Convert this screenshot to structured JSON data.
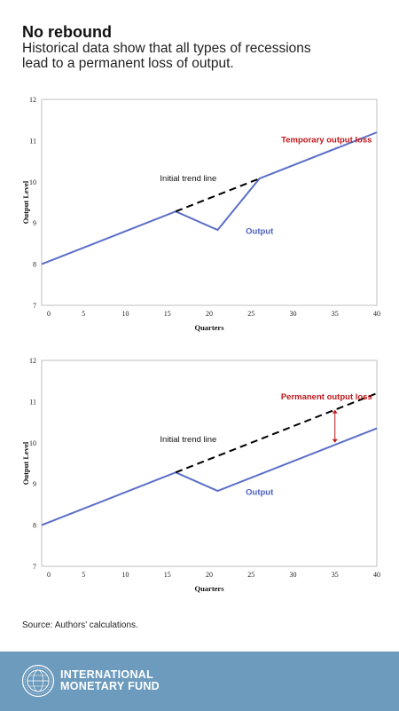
{
  "header": {
    "title": "No rebound",
    "subtitle_line1": "Historical data show that all types of recessions",
    "subtitle_line2": "lead to a permanent loss of output."
  },
  "chart_data": [
    {
      "type": "line",
      "xlabel": "Quarters",
      "ylabel": "Output Level",
      "xlim": [
        0,
        40
      ],
      "ylim": [
        7,
        12
      ],
      "xticks": [
        0,
        5,
        10,
        15,
        20,
        25,
        30,
        35,
        40
      ],
      "yticks": [
        7,
        8,
        9,
        10,
        11,
        12
      ],
      "series": [
        {
          "name": "Output",
          "style": "solid",
          "color": "#5b6ec8",
          "x": [
            0,
            16,
            21,
            26,
            40
          ],
          "y": [
            8.0,
            9.28,
            8.83,
            10.08,
            11.2
          ]
        },
        {
          "name": "Initial trend line",
          "style": "dashed",
          "color": "#000000",
          "x": [
            16,
            26
          ],
          "y": [
            9.28,
            10.08
          ]
        }
      ],
      "annotations": [
        {
          "text": "Temporary output loss",
          "color": "#c0171b",
          "x": 34.0,
          "y": 10.95
        },
        {
          "text": "Initial trend line",
          "color": "#111111",
          "x": 17.5,
          "y": 10.02
        },
        {
          "text": "Output",
          "color": "#4a5fbf",
          "x": 26.0,
          "y": 8.74
        }
      ]
    },
    {
      "type": "line",
      "xlabel": "Quarters",
      "ylabel": "Output Level",
      "xlim": [
        0,
        40
      ],
      "ylim": [
        7,
        12
      ],
      "xticks": [
        0,
        5,
        10,
        15,
        20,
        25,
        30,
        35,
        40
      ],
      "yticks": [
        7,
        8,
        9,
        10,
        11,
        12
      ],
      "series": [
        {
          "name": "Output",
          "style": "solid",
          "color": "#5b6ec8",
          "x": [
            0,
            16,
            21,
            40
          ],
          "y": [
            8.0,
            9.28,
            8.83,
            10.35
          ]
        },
        {
          "name": "Initial trend line",
          "style": "dashed",
          "color": "#000000",
          "x": [
            16,
            40
          ],
          "y": [
            9.28,
            11.2
          ]
        }
      ],
      "annotations": [
        {
          "text": "Permanent output loss",
          "color": "#c0171b",
          "x": 34.0,
          "y": 11.05
        },
        {
          "text": "Initial trend line",
          "color": "#111111",
          "x": 17.5,
          "y": 10.02
        },
        {
          "text": "Output",
          "color": "#4a5fbf",
          "x": 26.0,
          "y": 8.74
        }
      ],
      "arrow": {
        "x": 35,
        "y_from": 10.0,
        "y_to": 10.8,
        "color": "#c0171b"
      }
    }
  ],
  "source": "Source: Authors’ calculations.",
  "footer": {
    "org_line1": "INTERNATIONAL",
    "org_line2": "MONETARY FUND",
    "logo_icon": "imf-seal-icon",
    "background_color": "#6d9bbd"
  }
}
